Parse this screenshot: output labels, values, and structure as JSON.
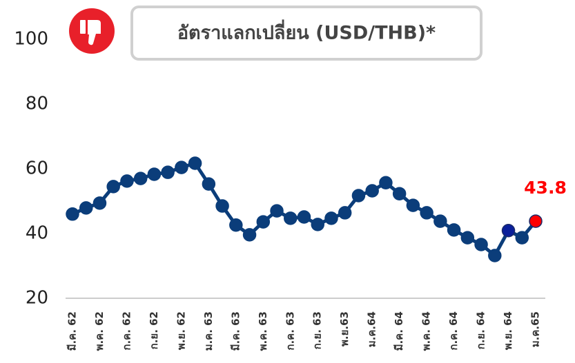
{
  "chart_data": {
    "type": "line",
    "title": "อัตราแลกเปลี่ยน (USD/THB)*",
    "categories": [
      "มี.ค. 62",
      null,
      "พ.ค. 62",
      null,
      "ก.ค. 62",
      null,
      "ก.ย. 62",
      null,
      "พ.ย. 62",
      null,
      "ม.ค. 63",
      null,
      "มี.ค. 63",
      null,
      "พ.ค. 63",
      null,
      "ก.ค. 63",
      null,
      "ก.ย. 63",
      null,
      "พ.ย.63",
      null,
      "ม.ค.64",
      null,
      "มี.ค. 64",
      null,
      "พ.ค. 64",
      null,
      "ก.ค. 64",
      null,
      "ก.ย. 64",
      null,
      "พ.ย. 64",
      null,
      "ม.ค.65"
    ],
    "series": [
      {
        "name": "USD/THB",
        "color": "#0b3d7a",
        "values": [
          46.0,
          47.9,
          49.4,
          54.5,
          56.2,
          57.0,
          58.3,
          58.9,
          60.4,
          61.7,
          55.3,
          48.5,
          42.6,
          39.6,
          43.6,
          47.0,
          44.7,
          45.1,
          42.8,
          44.7,
          46.4,
          51.7,
          53.2,
          55.7,
          52.3,
          48.7,
          46.4,
          43.8,
          41.1,
          38.7,
          36.6,
          33.2,
          40.9,
          38.7,
          43.8
        ]
      }
    ],
    "highlight_points": [
      {
        "index": 32,
        "color": "#0a1f9a"
      },
      {
        "index": 34,
        "color": "#ff0000"
      }
    ],
    "ylim": [
      20,
      100
    ],
    "yticks": [
      20,
      40,
      60,
      80,
      100
    ],
    "grid": false
  }
}
